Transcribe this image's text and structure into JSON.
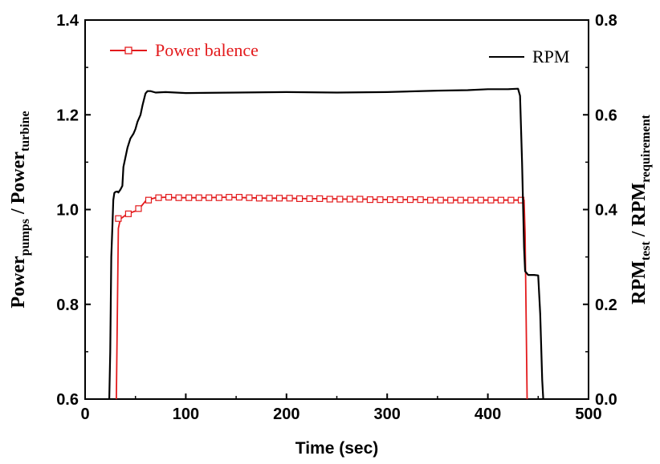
{
  "chart_data": {
    "type": "line",
    "xlabel": "Time (sec)",
    "ylabel_left": {
      "main": "Power",
      "sub1": "pumps",
      "mid": " / Power",
      "sub2": "turbine"
    },
    "ylabel_right": {
      "main": "RPM",
      "sub1": "test",
      "mid": " / RPM",
      "sub2": "requirement"
    },
    "xlim": [
      0,
      500
    ],
    "ylim_left": [
      0.6,
      1.4
    ],
    "ylim_right": [
      0.0,
      0.8
    ],
    "x_ticks": [
      "0",
      "100",
      "200",
      "300",
      "400",
      "500"
    ],
    "y_left_ticks": [
      "0.6",
      "0.8",
      "1.0",
      "1.2",
      "1.4"
    ],
    "y_right_ticks": [
      "0.0",
      "0.2",
      "0.4",
      "0.6",
      "0.8"
    ],
    "legend": {
      "power": "Power balence",
      "rpm": "RPM"
    },
    "colors": {
      "power": "#e31a1c",
      "rpm": "#000000"
    },
    "series": [
      {
        "name": "Power balence",
        "axis": "left",
        "x": [
          31,
          33,
          35,
          40,
          45,
          50,
          55,
          60,
          65,
          70,
          80,
          90,
          100,
          120,
          140,
          160,
          180,
          200,
          220,
          240,
          260,
          280,
          300,
          320,
          340,
          360,
          380,
          400,
          420,
          436,
          437,
          439
        ],
        "y": [
          0.6,
          0.96,
          0.98,
          0.988,
          0.993,
          0.997,
          1.005,
          1.018,
          1.022,
          1.025,
          1.026,
          1.025,
          1.025,
          1.025,
          1.026,
          1.025,
          1.024,
          1.024,
          1.023,
          1.023,
          1.022,
          1.022,
          1.021,
          1.021,
          1.021,
          1.02,
          1.02,
          1.02,
          1.02,
          1.02,
          0.95,
          0.6
        ],
        "markers": {
          "x": [
            33,
            43,
            53,
            63,
            73,
            83,
            93,
            103,
            113,
            123,
            133,
            143,
            153,
            163,
            173,
            183,
            193,
            203,
            213,
            223,
            233,
            243,
            253,
            263,
            273,
            283,
            293,
            303,
            313,
            323,
            333,
            343,
            353,
            363,
            373,
            383,
            393,
            403,
            413,
            423,
            433
          ],
          "y": [
            0.981,
            0.991,
            1.002,
            1.02,
            1.025,
            1.026,
            1.025,
            1.025,
            1.025,
            1.025,
            1.025,
            1.026,
            1.026,
            1.025,
            1.024,
            1.024,
            1.024,
            1.024,
            1.023,
            1.023,
            1.023,
            1.022,
            1.022,
            1.022,
            1.022,
            1.021,
            1.021,
            1.021,
            1.021,
            1.021,
            1.021,
            1.02,
            1.02,
            1.02,
            1.02,
            1.02,
            1.02,
            1.02,
            1.02,
            1.02,
            1.02
          ]
        }
      },
      {
        "name": "RPM",
        "axis": "right",
        "x": [
          24,
          25,
          26,
          27,
          28,
          29,
          30,
          32,
          33,
          35,
          37,
          38,
          40,
          42,
          45,
          48,
          50,
          52,
          55,
          57,
          60,
          62,
          65,
          70,
          80,
          100,
          150,
          200,
          250,
          300,
          350,
          380,
          400,
          420,
          430,
          432,
          434,
          436,
          437,
          440,
          443,
          446,
          450,
          452,
          454,
          455
        ],
        "y": [
          0.0,
          0.1,
          0.3,
          0.36,
          0.42,
          0.435,
          0.437,
          0.438,
          0.436,
          0.442,
          0.45,
          0.49,
          0.51,
          0.53,
          0.55,
          0.56,
          0.57,
          0.585,
          0.6,
          0.62,
          0.645,
          0.65,
          0.65,
          0.647,
          0.648,
          0.646,
          0.647,
          0.648,
          0.647,
          0.648,
          0.651,
          0.652,
          0.654,
          0.654,
          0.655,
          0.64,
          0.5,
          0.32,
          0.27,
          0.262,
          0.262,
          0.262,
          0.261,
          0.18,
          0.04,
          0.0
        ]
      }
    ]
  }
}
